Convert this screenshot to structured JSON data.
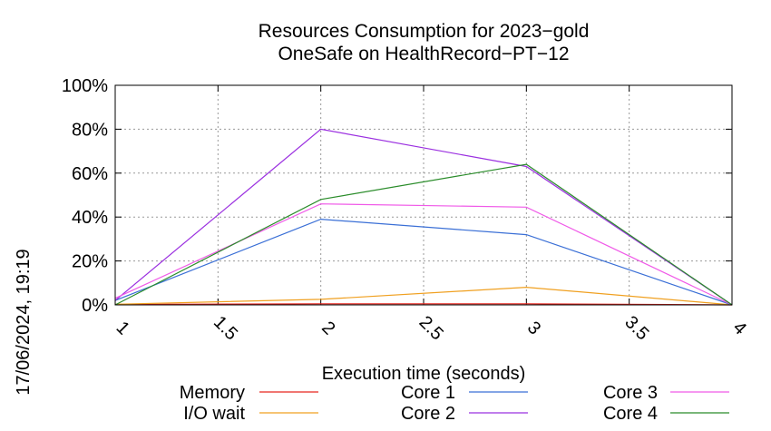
{
  "chart_data": {
    "type": "line",
    "title": [
      "Resources Consumption for 2023−gold",
      "OneSafe on HealthRecord−PT−12"
    ],
    "xlabel": "Execution time (seconds)",
    "ylabel": "",
    "side_label": "17/06/2024, 19:19",
    "xlim": [
      1,
      4
    ],
    "ylim": [
      0,
      100
    ],
    "xticks": [
      1,
      1.5,
      2,
      2.5,
      3,
      3.5,
      4
    ],
    "xtick_labels": [
      "1",
      "1.5",
      "2",
      "2.5",
      "3",
      "3.5",
      "4"
    ],
    "yticks": [
      0,
      20,
      40,
      60,
      80,
      100
    ],
    "ytick_labels": [
      "0%",
      "20%",
      "40%",
      "60%",
      "80%",
      "100%"
    ],
    "grid": true,
    "legend_position": "bottom",
    "x": [
      1,
      2,
      3,
      4
    ],
    "series": [
      {
        "name": "Memory",
        "color": "#e8261e",
        "values": [
          0.2,
          0.5,
          0.5,
          0
        ]
      },
      {
        "name": "I/O wait",
        "color": "#f0a020",
        "values": [
          0.3,
          2.5,
          8,
          0
        ]
      },
      {
        "name": "Core 1",
        "color": "#3a6fd6",
        "values": [
          2,
          39,
          32,
          0
        ]
      },
      {
        "name": "Core 2",
        "color": "#9b30e0",
        "values": [
          2,
          80,
          63,
          0
        ]
      },
      {
        "name": "Core 3",
        "color": "#f05ae8",
        "values": [
          3,
          46,
          44.5,
          0
        ]
      },
      {
        "name": "Core 4",
        "color": "#2a8c2a",
        "values": [
          0,
          48,
          64,
          0
        ]
      }
    ]
  }
}
